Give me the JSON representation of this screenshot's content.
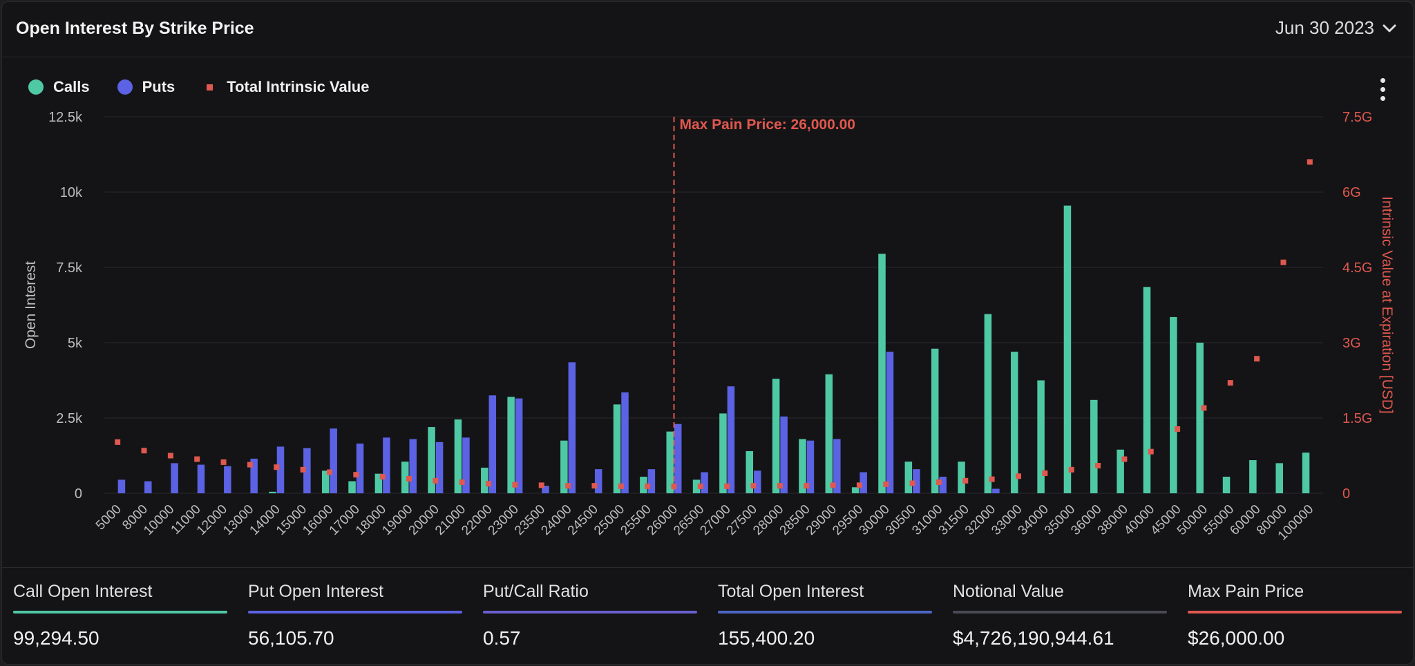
{
  "header": {
    "title": "Open Interest By Strike Price",
    "expiry": "Jun 30 2023"
  },
  "legend": [
    {
      "label": "Calls",
      "color": "#4fc9a4",
      "shape": "circle"
    },
    {
      "label": "Puts",
      "color": "#5b62e3",
      "shape": "circle"
    },
    {
      "label": "Total Intrinsic Value",
      "color": "#e0584f",
      "shape": "square"
    }
  ],
  "colors": {
    "calls": "#4fc9a4",
    "puts": "#5b62e3",
    "intrinsic": "#e0584f",
    "grid": "#2a2a2e",
    "axis_text": "#bdbdbd"
  },
  "icons": {
    "expiry_chevron": "chevron-down-icon",
    "menu": "more-vertical-icon"
  },
  "chart_data": {
    "type": "bar",
    "categories": [
      "5000",
      "8000",
      "10000",
      "11000",
      "12000",
      "13000",
      "14000",
      "15000",
      "16000",
      "17000",
      "18000",
      "19000",
      "20000",
      "21000",
      "22000",
      "23000",
      "23500",
      "24000",
      "24500",
      "25000",
      "25500",
      "26000",
      "26500",
      "27000",
      "27500",
      "28000",
      "28500",
      "29000",
      "29500",
      "30000",
      "30500",
      "31000",
      "31500",
      "32000",
      "33000",
      "34000",
      "35000",
      "36000",
      "38000",
      "40000",
      "45000",
      "50000",
      "55000",
      "60000",
      "80000",
      "100000"
    ],
    "series": [
      {
        "name": "Calls",
        "type": "bar",
        "axis": "left",
        "values": [
          0,
          0,
          0,
          0,
          0,
          0,
          50,
          0,
          750,
          400,
          650,
          1050,
          2200,
          2450,
          850,
          3200,
          0,
          1750,
          0,
          2950,
          550,
          2050,
          450,
          2650,
          1400,
          3800,
          1800,
          3950,
          200,
          7950,
          1050,
          4800,
          1050,
          5950,
          4700,
          3750,
          9550,
          3100,
          1450,
          6850,
          5850,
          5000,
          550,
          1100,
          1000,
          1350
        ]
      },
      {
        "name": "Puts",
        "type": "bar",
        "axis": "left",
        "values": [
          450,
          400,
          1000,
          950,
          900,
          1150,
          1550,
          1500,
          2150,
          1650,
          1850,
          1800,
          1700,
          1850,
          3250,
          3150,
          250,
          4350,
          800,
          3350,
          800,
          2300,
          700,
          3550,
          750,
          2550,
          1750,
          1800,
          700,
          4700,
          800,
          550,
          0,
          150,
          0,
          0,
          0,
          0,
          0,
          0,
          0,
          0,
          0,
          0,
          0,
          0
        ]
      },
      {
        "name": "Total Intrinsic Value",
        "type": "scatter",
        "axis": "right",
        "values": [
          1020000000.0,
          850000000.0,
          750000000.0,
          680000000.0,
          620000000.0,
          570000000.0,
          520000000.0,
          470000000.0,
          420000000.0,
          370000000.0,
          330000000.0,
          290000000.0,
          250000000.0,
          220000000.0,
          190000000.0,
          170000000.0,
          160000000.0,
          150000000.0,
          150000000.0,
          140000000.0,
          140000000.0,
          140000000.0,
          140000000.0,
          140000000.0,
          150000000.0,
          150000000.0,
          150000000.0,
          160000000.0,
          160000000.0,
          180000000.0,
          200000000.0,
          220000000.0,
          250000000.0,
          280000000.0,
          340000000.0,
          400000000.0,
          470000000.0,
          550000000.0,
          680000000.0,
          830000000.0,
          1280000000.0,
          1700000000.0,
          2200000000.0,
          2680000000.0,
          4600000000.0,
          6600000000.0
        ]
      }
    ],
    "ylabel": "Open Interest",
    "y2label": "Intrinsic Value at Expiration [USD]",
    "ylim": [
      0,
      12500
    ],
    "y2lim": [
      0,
      7500000000
    ],
    "yticks": [
      "0",
      "2.5k",
      "5k",
      "7.5k",
      "10k",
      "12.5k"
    ],
    "y2ticks": [
      "0",
      "1.5G",
      "3G",
      "4.5G",
      "6G",
      "7.5G"
    ],
    "max_pain": {
      "strike": "26000",
      "label": "Max Pain Price: 26,000.00"
    },
    "grid": true,
    "legend_position": "top-left"
  },
  "stats": [
    {
      "label": "Call Open Interest",
      "value": "99,294.50",
      "color": "#4fc9a4"
    },
    {
      "label": "Put Open Interest",
      "value": "56,105.70",
      "color": "#5b62e3"
    },
    {
      "label": "Put/Call Ratio",
      "value": "0.57",
      "color": "#6a5fd0"
    },
    {
      "label": "Total Open Interest",
      "value": "155,400.20",
      "color": "#4c66c6"
    },
    {
      "label": "Notional Value",
      "value": "$4,726,190,944.61",
      "color": "#4a4a55"
    },
    {
      "label": "Max Pain Price",
      "value": "$26,000.00",
      "color": "#e0584f"
    }
  ]
}
